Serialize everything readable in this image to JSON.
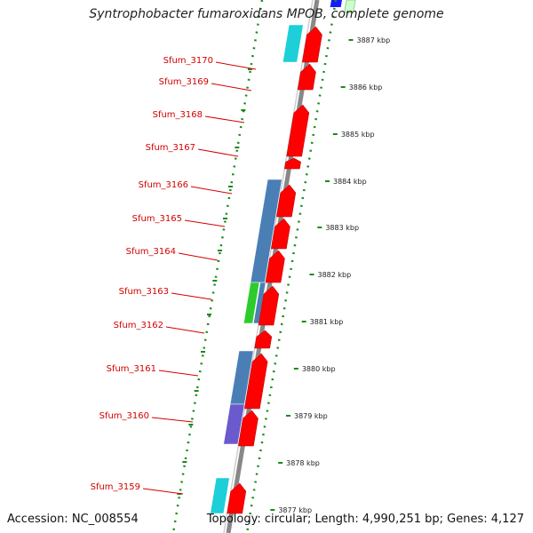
{
  "title": "Syntrophobacter fumaroxidans MPOB, complete genome",
  "accession_text": "Accession: NC_008554",
  "summary_text": "Topology: circular; Length: 4,990,251 bp; Genes: 4,127",
  "gene_labels": [
    "Sfum_3170",
    "Sfum_3169",
    "Sfum_3168",
    "Sfum_3167",
    "Sfum_3166",
    "Sfum_3165",
    "Sfum_3164",
    "Sfum_3163",
    "Sfum_3162",
    "Sfum_3161",
    "Sfum_3160",
    "Sfum_3159"
  ],
  "kbp_labels": [
    "3887 kbp",
    "3886 kbp",
    "3885 kbp",
    "3884 kbp",
    "3883 kbp",
    "3882 kbp",
    "3881 kbp",
    "3880 kbp",
    "3879 kbp",
    "3878 kbp",
    "3877 kbp"
  ],
  "colors": {
    "gene_arrow": "#ff0000",
    "label_text": "#d40000",
    "backbone": "#888888",
    "tick_dots": "#1a8a1a",
    "blue_block": "#4a7fb5",
    "cyan_block": "#1ccfd8",
    "green_block": "#2ccc2c",
    "purple_block": "#6a5acd",
    "top_blue": "#1a1aff"
  }
}
